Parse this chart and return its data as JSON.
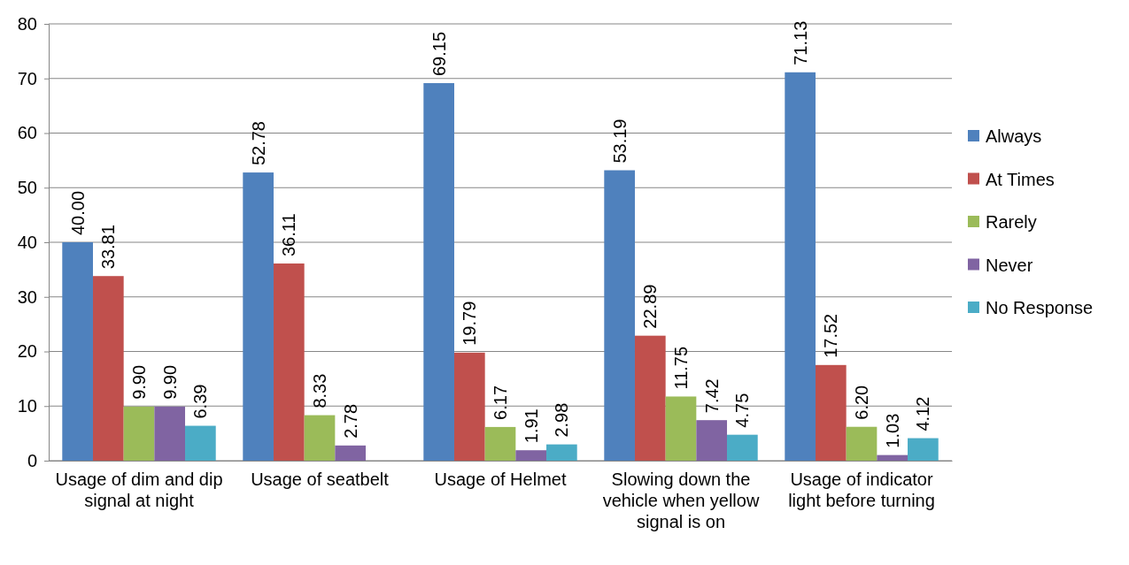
{
  "chart_data": {
    "type": "bar",
    "categories": [
      "Usage of dim and dip signal at night",
      "Usage of seatbelt",
      "Usage of Helmet",
      "Slowing down the vehicle when yellow signal is on",
      "Usage of indicator light before turning"
    ],
    "series": [
      {
        "name": "Always",
        "color": "#4f81bd",
        "values": [
          40.0,
          52.78,
          69.15,
          53.19,
          71.13
        ],
        "value_labels": [
          "40.00",
          "52.78",
          "69.15",
          "53.19",
          "71.13"
        ]
      },
      {
        "name": "At Times",
        "color": "#c0504d",
        "values": [
          33.81,
          36.11,
          19.79,
          22.89,
          17.52
        ],
        "value_labels": [
          "33.81",
          "36.11",
          "19.79",
          "22.89",
          "17.52"
        ]
      },
      {
        "name": "Rarely",
        "color": "#9bbb59",
        "values": [
          9.9,
          8.33,
          6.17,
          11.75,
          6.2
        ],
        "value_labels": [
          "9.90",
          "8.33",
          "6.17",
          "11.75",
          "6.20"
        ]
      },
      {
        "name": "Never",
        "color": "#8064a2",
        "values": [
          9.9,
          2.78,
          1.91,
          7.42,
          1.03
        ],
        "value_labels": [
          "9.90",
          "2.78",
          "1.91",
          "7.42",
          "1.03"
        ]
      },
      {
        "name": "No Response",
        "color": "#4bacc6",
        "values": [
          6.39,
          null,
          2.98,
          4.75,
          4.12
        ],
        "value_labels": [
          "6.39",
          null,
          "2.98",
          "4.75",
          "4.12"
        ]
      }
    ],
    "ylim": [
      0,
      80
    ],
    "yticks": [
      0,
      10,
      20,
      30,
      40,
      50,
      60,
      70,
      80
    ],
    "grid": "y",
    "legend": "right"
  }
}
